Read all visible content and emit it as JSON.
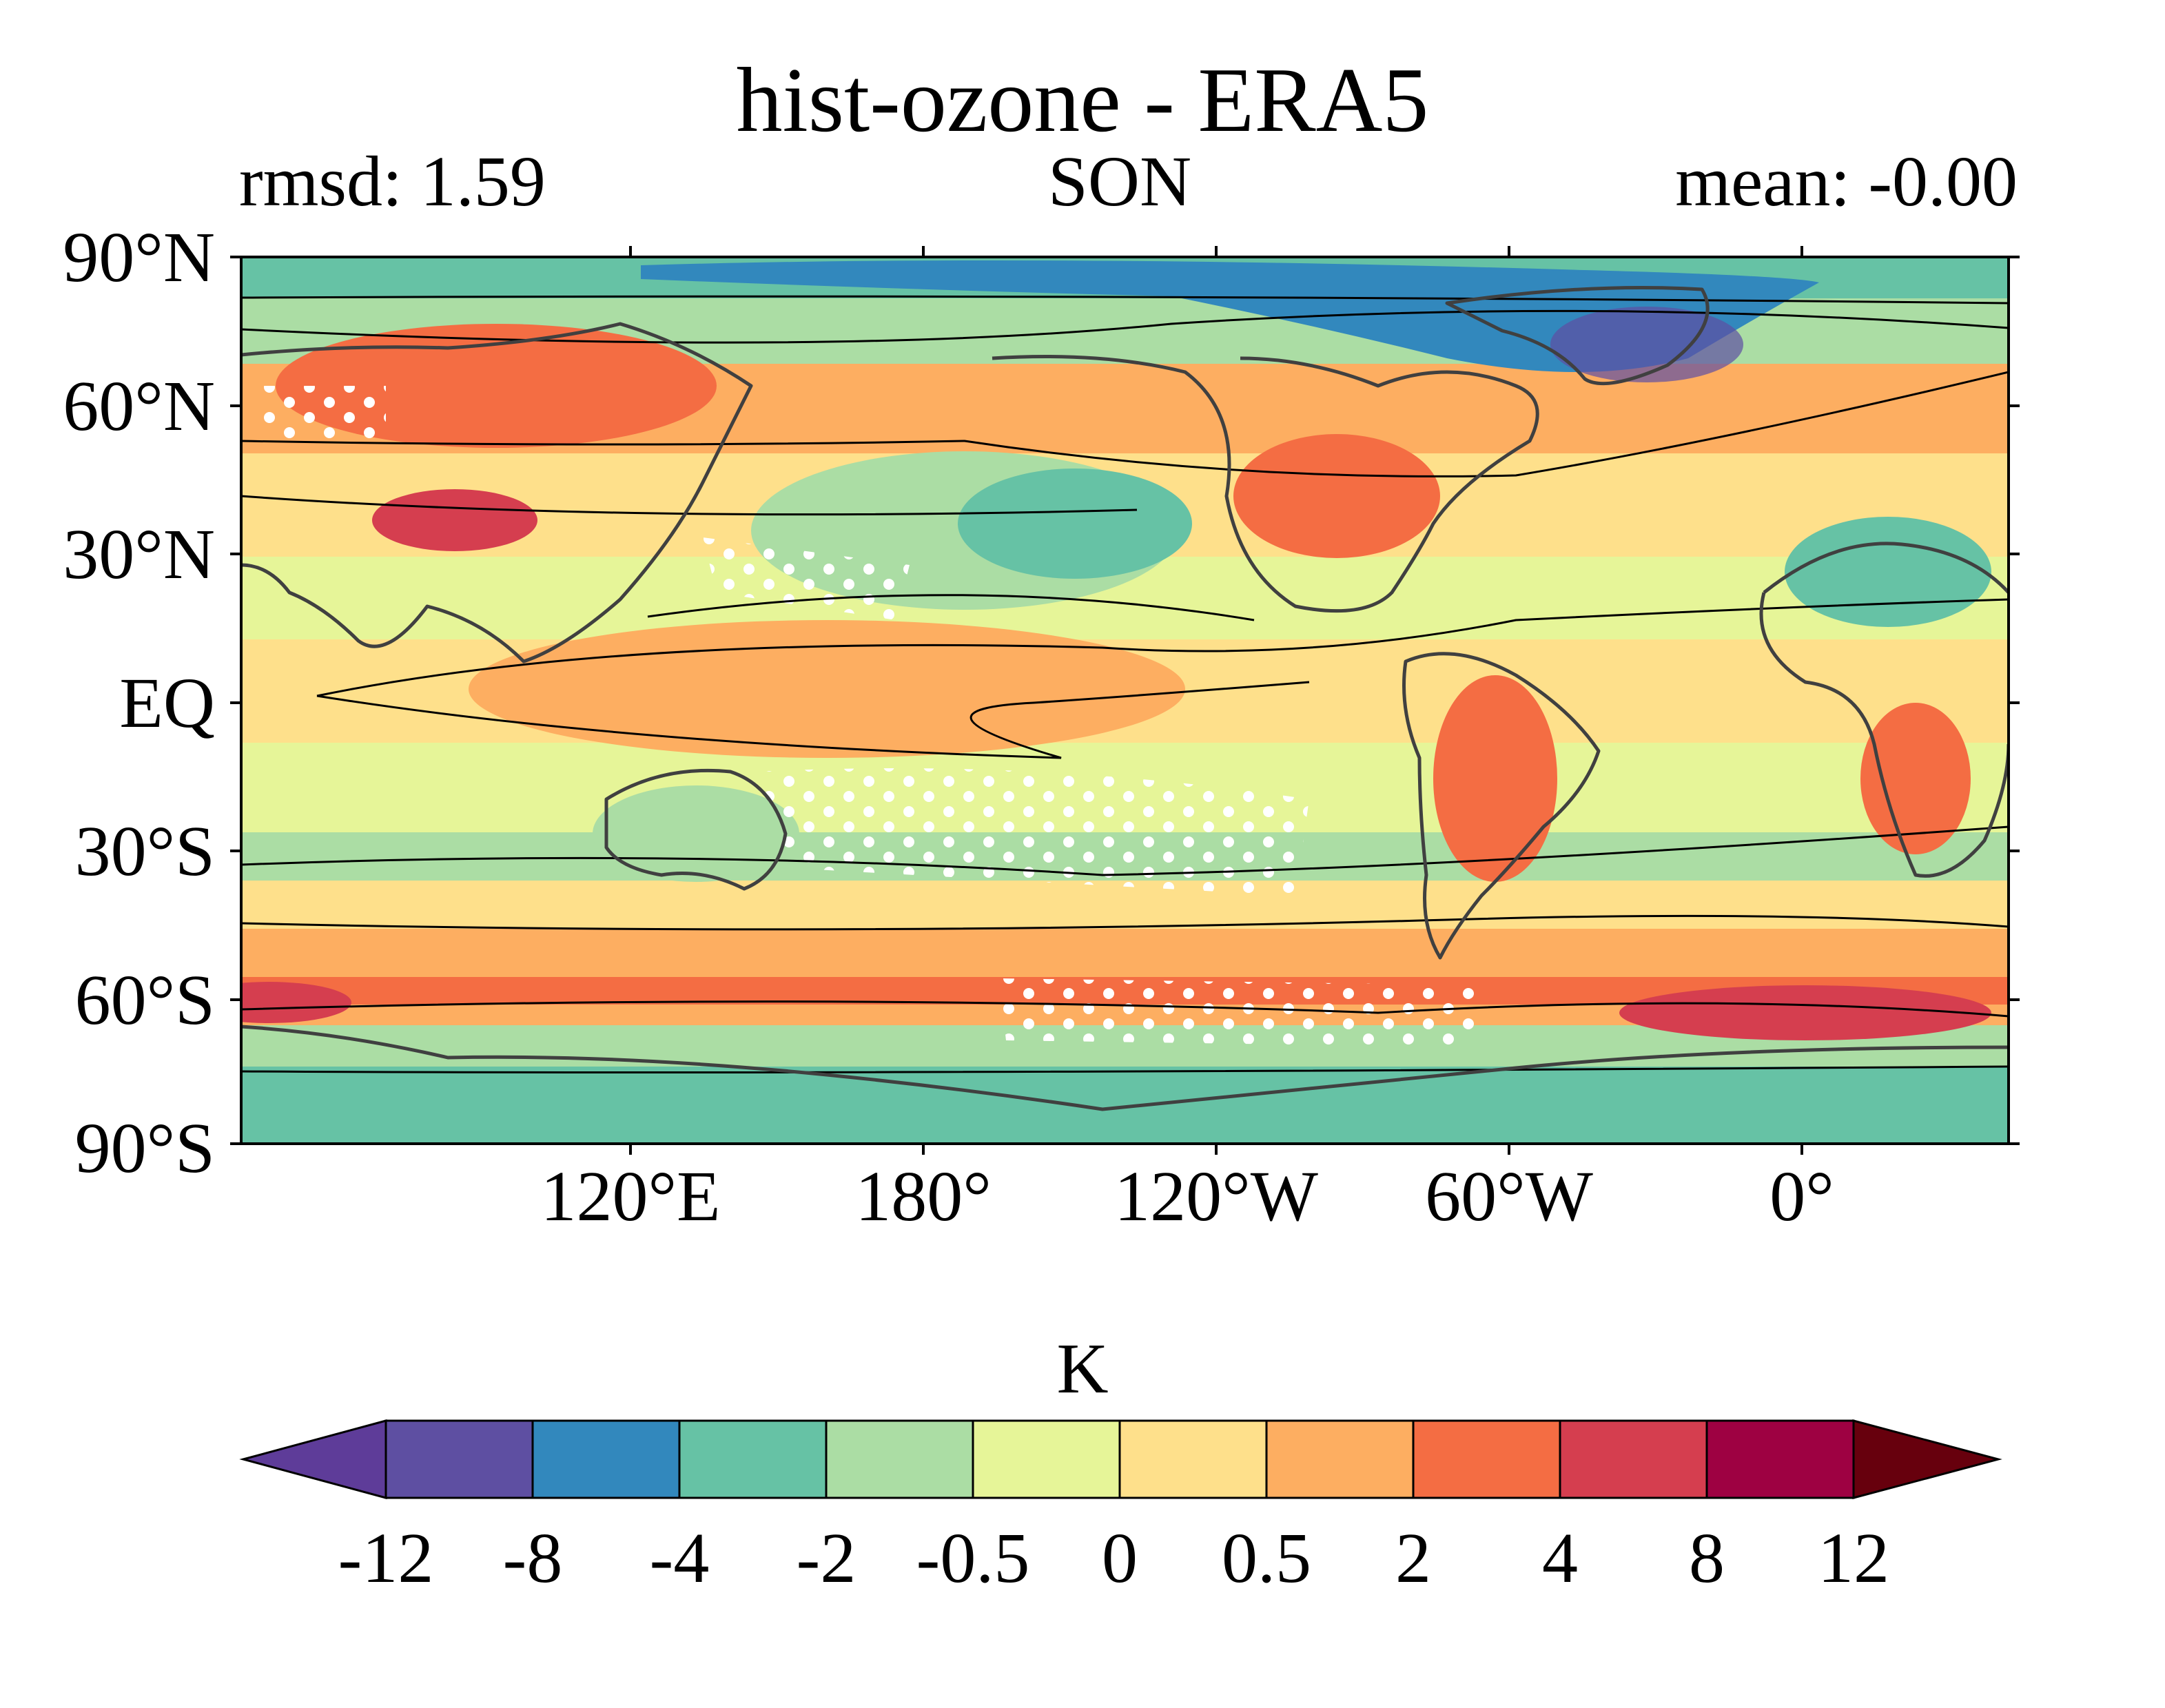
{
  "figure": {
    "title": "hist-ozone - ERA5",
    "left_annotation": "rmsd: 1.59",
    "center_annotation": "SON",
    "right_annotation": "mean: -0.00"
  },
  "map": {
    "projection": "equirectangular",
    "central_longitude": -150,
    "lat_ticks": [
      "90°N",
      "60°N",
      "30°N",
      "EQ",
      "30°S",
      "60°S",
      "90°S"
    ],
    "lon_ticks": [
      "120°E",
      "180°",
      "120°W",
      "60°W",
      "0°"
    ],
    "coastlines_color": "#404040",
    "climatology_contours_color": "#000000",
    "stipple_color": "#ffffff"
  },
  "colorbar": {
    "label": "K",
    "ticks": [
      "-12",
      "-8",
      "-4",
      "-2",
      "-0.5",
      "0",
      "0.5",
      "2",
      "4",
      "8",
      "12"
    ],
    "extend": "both",
    "under_color": "#5e3c99",
    "over_color": "#67000d",
    "colors": [
      "#5e4fa2",
      "#3288bd",
      "#66c2a5",
      "#abdda4",
      "#e6f598",
      "#fee08b",
      "#fdae61",
      "#f46d43",
      "#d53e4f",
      "#9e0142"
    ]
  }
}
